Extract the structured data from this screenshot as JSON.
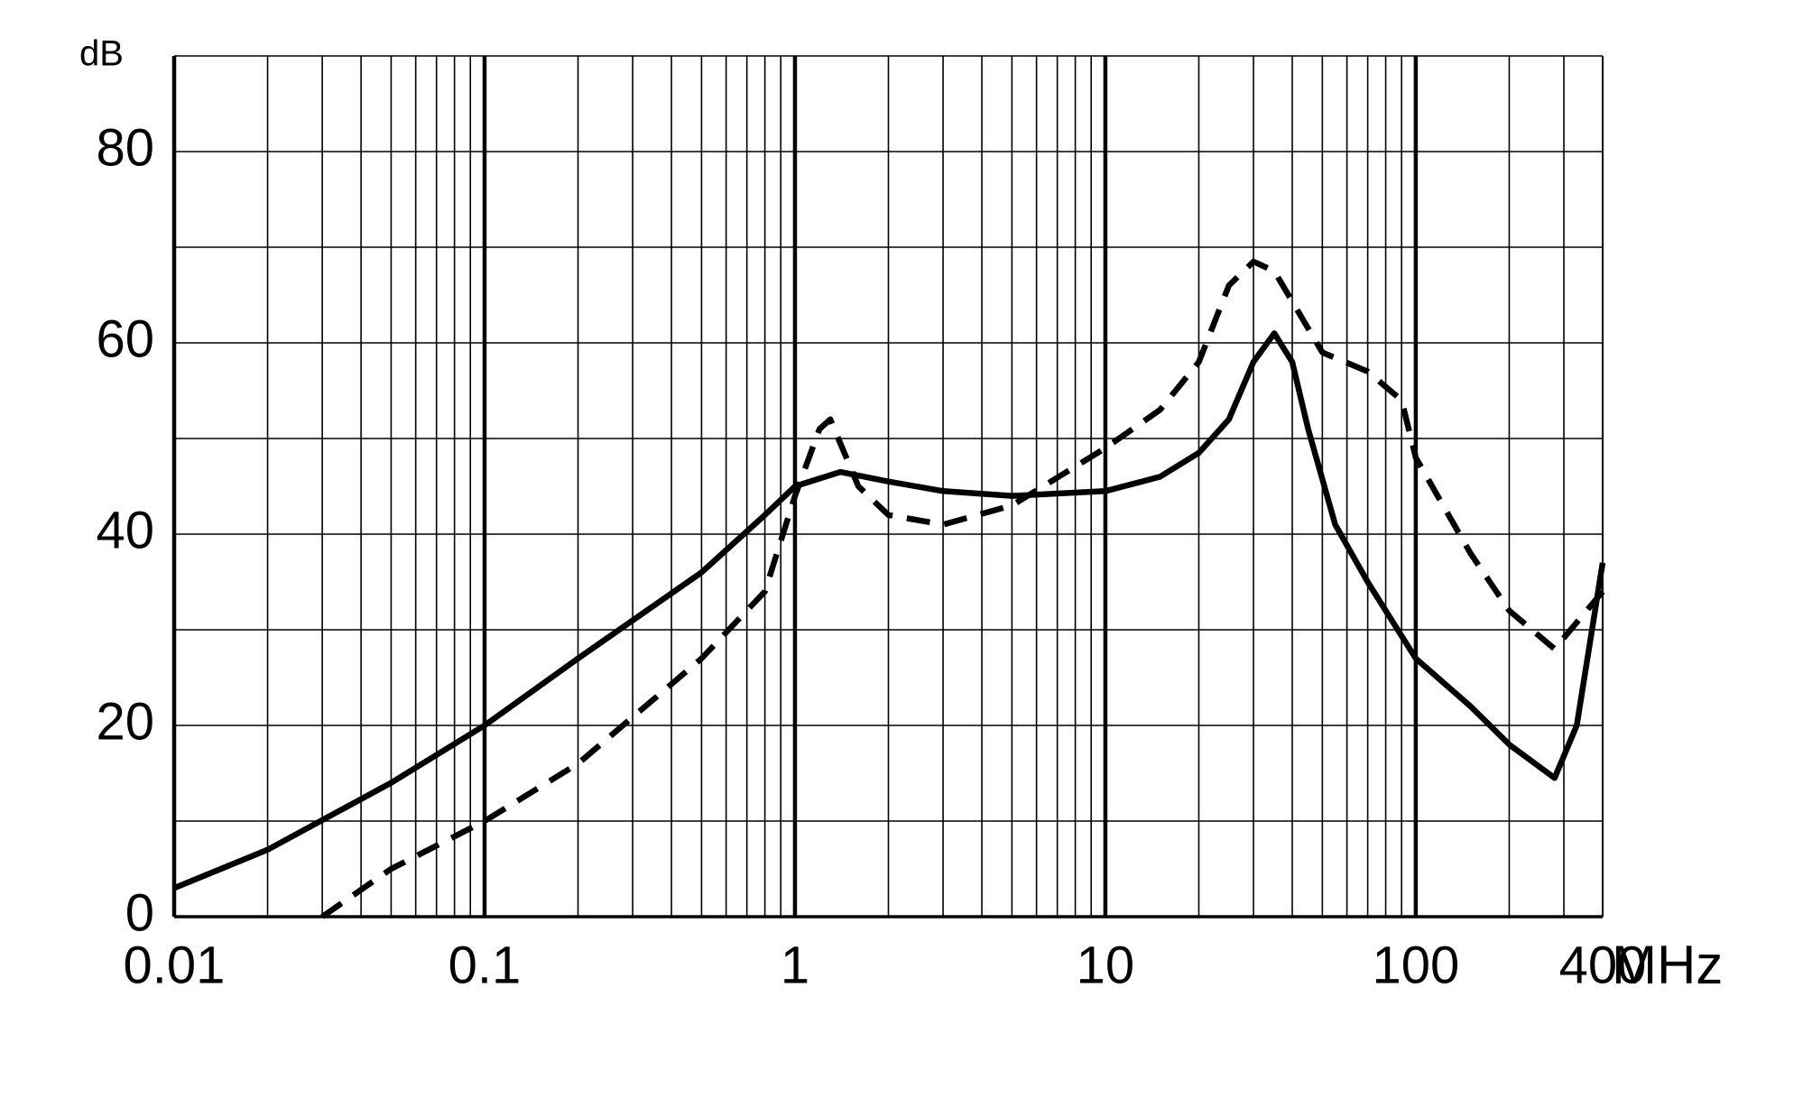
{
  "chart_data": {
    "type": "line",
    "y_label": "dB",
    "x_label": "MHz",
    "x_scale": "log",
    "xlim": [
      0.01,
      400
    ],
    "xticks": [
      0.01,
      0.1,
      1,
      10,
      100,
      400
    ],
    "ylim": [
      0,
      90
    ],
    "yticks": [
      0,
      20,
      40,
      60,
      80
    ],
    "grid": true,
    "series": [
      {
        "color": "#000000",
        "style": "solid",
        "x": [
          0.01,
          0.02,
          0.05,
          0.1,
          0.2,
          0.5,
          0.8,
          1,
          1.4,
          2,
          3,
          5,
          10,
          15,
          20,
          25,
          30,
          35,
          40,
          45,
          55,
          70,
          100,
          150,
          200,
          280,
          330,
          400
        ],
        "values": [
          3,
          7,
          14,
          20,
          27,
          36,
          42,
          45,
          46.5,
          45.5,
          44.5,
          44,
          44.5,
          46,
          48.5,
          52,
          58,
          61,
          58,
          51,
          41,
          35,
          27,
          22,
          18,
          14.5,
          20,
          37
        ]
      },
      {
        "color": "#000000",
        "style": "dashed",
        "x": [
          0.03,
          0.05,
          0.1,
          0.2,
          0.5,
          0.8,
          1,
          1.2,
          1.3,
          1.6,
          2,
          3,
          5,
          10,
          15,
          20,
          25,
          30,
          35,
          50,
          70,
          90,
          100,
          150,
          200,
          280,
          400
        ],
        "values": [
          0,
          5,
          10,
          16,
          27,
          34,
          44,
          51,
          52,
          45,
          42,
          41,
          43,
          49,
          53,
          58,
          66,
          68.5,
          67.5,
          59,
          57,
          54,
          48,
          38,
          32,
          28,
          34
        ]
      }
    ]
  }
}
